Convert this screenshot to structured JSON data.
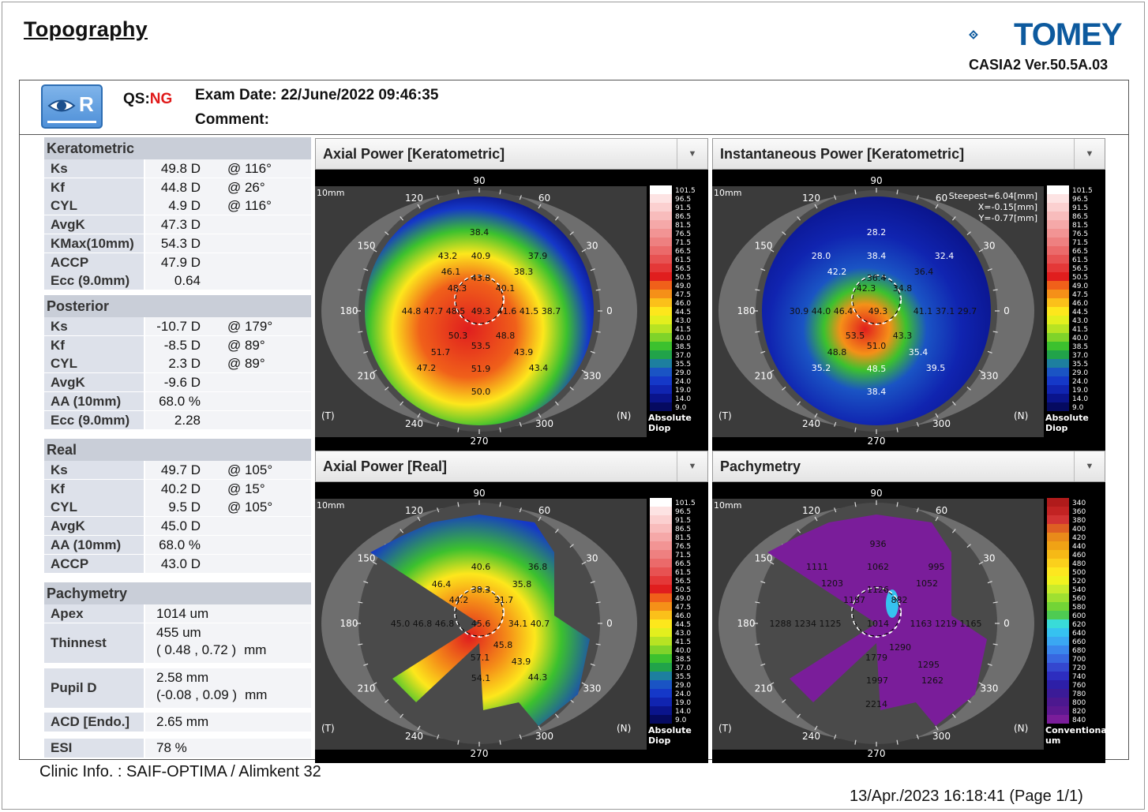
{
  "title": "Topography",
  "brand": {
    "name": "TOMEY",
    "version": "CASIA2 Ver.50.5A.03"
  },
  "eye_badge": "R",
  "qs_label": "QS:",
  "qs_value": "NG",
  "exam_date": "Exam Date: 22/June/2022 09:46:35",
  "comment": "Comment:",
  "keratometric": {
    "title": "Keratometric",
    "rows": [
      {
        "label": "Ks",
        "value": "49.8 D",
        "axis": "@ 116°"
      },
      {
        "label": "Kf",
        "value": "44.8 D",
        "axis": "@ 26°"
      },
      {
        "label": "CYL",
        "value": "4.9 D",
        "axis": "@ 116°"
      },
      {
        "label": "AvgK",
        "value": "47.3 D",
        "axis": ""
      },
      {
        "label": "KMax(10mm)",
        "value": "54.3 D",
        "axis": ""
      },
      {
        "label": "ACCP",
        "value": "47.9 D",
        "axis": ""
      },
      {
        "label": "Ecc (9.0mm)",
        "value": "0.64",
        "axis": ""
      }
    ]
  },
  "posterior": {
    "title": "Posterior",
    "rows": [
      {
        "label": "Ks",
        "value": "-10.7 D",
        "axis": "@ 179°"
      },
      {
        "label": "Kf",
        "value": "-8.5 D",
        "axis": "@ 89°"
      },
      {
        "label": "CYL",
        "value": "2.3 D",
        "axis": "@ 89°"
      },
      {
        "label": "AvgK",
        "value": "-9.6 D",
        "axis": ""
      },
      {
        "label": "AA (10mm)",
        "value": "68.0 %",
        "axis": ""
      },
      {
        "label": "Ecc (9.0mm)",
        "value": "2.28",
        "axis": ""
      }
    ]
  },
  "real": {
    "title": "Real",
    "rows": [
      {
        "label": "Ks",
        "value": "49.7 D",
        "axis": "@ 105°"
      },
      {
        "label": "Kf",
        "value": "40.2 D",
        "axis": "@ 15°"
      },
      {
        "label": "CYL",
        "value": "9.5 D",
        "axis": "@ 105°"
      },
      {
        "label": "AvgK",
        "value": "45.0 D",
        "axis": ""
      },
      {
        "label": "AA (10mm)",
        "value": "68.0 %",
        "axis": ""
      },
      {
        "label": "ACCP",
        "value": "43.0 D",
        "axis": ""
      }
    ]
  },
  "pachymetry": {
    "title": "Pachymetry",
    "apex_label": "Apex",
    "apex_value": "1014 um",
    "thinnest_label": "Thinnest",
    "thinnest_value": "455 um",
    "thinnest_pos": "( 0.48 , 0.72 )",
    "thinnest_unit": "mm",
    "pupil_label": "Pupil D",
    "pupil_value": "2.58 mm",
    "pupil_pos": "(-0.08 , 0.09 )",
    "pupil_unit": "mm",
    "acd_label": "ACD [Endo.]",
    "acd_value": "2.65 mm",
    "esi_label": "ESI",
    "esi_value": "78 %"
  },
  "maps": [
    {
      "title": "Axial Power [Keratometric]",
      "scale_label": "Absolute\nDiop",
      "values": [
        "38.4",
        "43.2",
        "40.9",
        "37.9",
        "46.1",
        "38.3",
        "48.3",
        "43.8",
        "40.1",
        "44.8 47.7 48.5",
        "49.3",
        "41.6 41.5 38.7",
        "50.3",
        "48.8",
        "51.7",
        "53.5",
        "43.9",
        "47.2",
        "51.9",
        "43.4",
        "50.0"
      ]
    },
    {
      "title": "Instantaneous Power [Keratometric]",
      "steepest": "Steepest=6.04[mm]",
      "x": "X=-0.15[mm]",
      "y": "Y=-0.77[mm]",
      "scale_label": "Absolute\nDiop",
      "values": [
        "28.2",
        "28.0",
        "38.4",
        "32.4",
        "42.2",
        "36.4",
        "36.4",
        "42.3",
        "34.8",
        "30.9 44.0 46.4",
        "49.3",
        "41.1 37.1 29.7",
        "53.5",
        "43.3",
        "51.0",
        "48.8",
        "35.4",
        "35.2",
        "48.5",
        "39.5",
        "38.4"
      ]
    },
    {
      "title": "Axial Power [Real]",
      "scale_label": "Absolute\nDiop",
      "values": [
        "40.6",
        "36.8",
        "46.4",
        "38.3",
        "35.8",
        "44.2",
        "31.7",
        "45.0 46.8 46.8",
        "45.6",
        "34.1 40.7",
        "45.8",
        "57.1",
        "43.9",
        "54.1",
        "44.3"
      ]
    },
    {
      "title": "Pachymetry",
      "scale_label": "Conventional\num",
      "values": [
        "936",
        "1111",
        "1062",
        "995",
        "1203",
        "1126",
        "1052",
        "1187",
        "882",
        "1288 1234 1125",
        "1014",
        "1163 1219 1165",
        "1290",
        "1779",
        "1295",
        "1997",
        "1262",
        "2214"
      ]
    }
  ],
  "map_common": {
    "size_label": "10mm",
    "deg": [
      "90",
      "60",
      "30",
      "0",
      "330",
      "300",
      "270",
      "240",
      "210",
      "180",
      "150",
      "120"
    ],
    "t": "(T)",
    "n": "(N)"
  },
  "diop_scale": [
    "101.5",
    "96.5",
    "91.5",
    "86.5",
    "81.5",
    "76.5",
    "71.5",
    "66.5",
    "61.5",
    "56.5",
    "50.5",
    "49.0",
    "47.5",
    "46.0",
    "44.5",
    "43.0",
    "41.5",
    "40.0",
    "38.5",
    "37.0",
    "35.5",
    "29.0",
    "24.0",
    "19.0",
    "14.0",
    "9.0"
  ],
  "pachy_scale": [
    "340",
    "360",
    "380",
    "400",
    "420",
    "440",
    "460",
    "480",
    "500",
    "520",
    "540",
    "560",
    "580",
    "600",
    "620",
    "640",
    "660",
    "680",
    "700",
    "720",
    "740",
    "760",
    "780",
    "800",
    "820",
    "840"
  ],
  "diop_colors": [
    "#ffffff",
    "#fde3e3",
    "#fbd0d0",
    "#f8bcbc",
    "#f5a8a8",
    "#f29494",
    "#ee8080",
    "#eb6a6a",
    "#e75252",
    "#e43838",
    "#e01e1e",
    "#f0601a",
    "#f59018",
    "#fbc01a",
    "#fde71c",
    "#e3ef1e",
    "#b7e323",
    "#7fd32a",
    "#3cc12e",
    "#21a34a",
    "#1d7f9f",
    "#1a54c4",
    "#1538c8",
    "#1024b0",
    "#0a148c",
    "#050a60"
  ],
  "pachy_colors": [
    "#b01b1b",
    "#c22323",
    "#d23333",
    "#de5f23",
    "#e98a1a",
    "#f0a215",
    "#f6b916",
    "#fbd01c",
    "#fde71f",
    "#f0f21f",
    "#c9eb2c",
    "#9fe031",
    "#73d436",
    "#4ecb52",
    "#39dbd8",
    "#36c2f0",
    "#3aa7f2",
    "#3a86ec",
    "#3867e0",
    "#3447cf",
    "#2d2dbf",
    "#2d1fa7",
    "#3b1b97",
    "#4c188f",
    "#5c1890",
    "#7a1d9a"
  ],
  "clinic": "Clinic Info. :   SAIF-OPTIMA / Alimkent 32",
  "print_date": "13/Apr./2023 16:18:41     (Page 1/1)"
}
